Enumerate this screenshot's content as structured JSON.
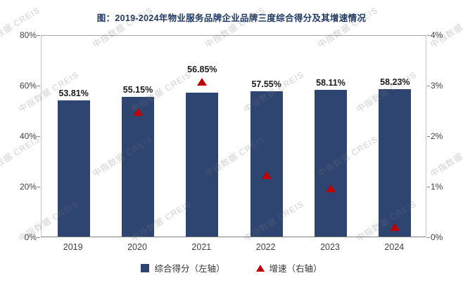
{
  "title": "图：2019-2024年物业服务品牌企业品牌三度综合得分及其增速情况",
  "watermark": "中指数据 CREIS",
  "colors": {
    "bar": "#2e4471",
    "marker": "#c00000",
    "title": "#1f3864"
  },
  "chart_data": {
    "type": "bar",
    "title": "图：2019-2024年物业服务品牌企业品牌三度综合得分及其增速情况",
    "categories": [
      "2019",
      "2020",
      "2021",
      "2022",
      "2023",
      "2024"
    ],
    "series": [
      {
        "name": "综合得分（左轴）",
        "type": "bar",
        "axis": "left",
        "color": "#2e4471",
        "values": [
          53.81,
          55.15,
          56.85,
          57.55,
          58.11,
          58.23
        ],
        "labels": [
          "53.81%",
          "55.15%",
          "56.85%",
          "57.55%",
          "58.11%",
          "58.23%"
        ]
      },
      {
        "name": "增速（右轴）",
        "type": "scatter-triangle",
        "axis": "right",
        "color": "#c00000",
        "values": [
          null,
          2.49,
          3.08,
          1.23,
          0.97,
          0.21
        ]
      }
    ],
    "left_axis": {
      "min": 0,
      "max": 80,
      "ticks": [
        "0%",
        "20%",
        "40%",
        "60%",
        "80%"
      ]
    },
    "right_axis": {
      "min": 0,
      "max": 4,
      "ticks": [
        "0%",
        "1%",
        "2%",
        "3%",
        "4%"
      ]
    },
    "grid": false,
    "legend_position": "bottom"
  }
}
